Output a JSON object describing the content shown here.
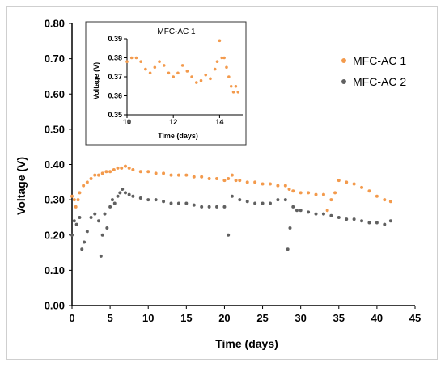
{
  "chart_data": [
    {
      "type": "scatter",
      "title": "",
      "xlabel": "Time (days)",
      "ylabel": "Voltage (V)",
      "xlim": [
        0,
        45
      ],
      "ylim": [
        0,
        0.8
      ],
      "x_ticks": [
        "0",
        "5",
        "10",
        "15",
        "20",
        "25",
        "30",
        "35",
        "40",
        "45"
      ],
      "y_ticks": [
        "0.00",
        "0.10",
        "0.20",
        "0.30",
        "0.40",
        "0.50",
        "0.60",
        "0.70",
        "0.80"
      ],
      "legend_position": "right, upper",
      "grid": false,
      "series": [
        {
          "name": "MFC-AC 1",
          "color": "#F39A4C",
          "marker": "circle",
          "x": [
            0,
            0.3,
            0.5,
            0.8,
            1,
            1.5,
            2,
            2.5,
            3,
            3.5,
            4,
            4.5,
            5,
            5.5,
            6,
            6.5,
            7,
            7.5,
            8,
            9,
            10,
            11,
            12,
            13,
            14,
            15,
            16,
            17,
            18,
            19,
            20,
            20.5,
            21,
            21.5,
            22,
            23,
            24,
            25,
            26,
            27,
            28,
            28.5,
            29,
            30,
            31,
            32,
            33,
            33.5,
            34,
            34.5,
            35,
            36,
            37,
            38,
            39,
            40,
            41,
            41.8
          ],
          "y": [
            0.31,
            0.3,
            0.28,
            0.3,
            0.32,
            0.34,
            0.35,
            0.36,
            0.37,
            0.37,
            0.375,
            0.38,
            0.38,
            0.385,
            0.39,
            0.39,
            0.395,
            0.39,
            0.385,
            0.38,
            0.38,
            0.375,
            0.375,
            0.37,
            0.37,
            0.37,
            0.365,
            0.365,
            0.36,
            0.36,
            0.355,
            0.36,
            0.37,
            0.355,
            0.355,
            0.35,
            0.35,
            0.345,
            0.345,
            0.34,
            0.34,
            0.33,
            0.325,
            0.32,
            0.32,
            0.315,
            0.315,
            0.27,
            0.3,
            0.32,
            0.355,
            0.35,
            0.345,
            0.335,
            0.325,
            0.31,
            0.3,
            0.295
          ]
        },
        {
          "name": "MFC-AC 2",
          "color": "#606060",
          "marker": "circle",
          "x": [
            0,
            0.3,
            0.6,
            1,
            1.3,
            1.6,
            2,
            2.5,
            3,
            3.5,
            3.8,
            4,
            4.3,
            4.6,
            5,
            5.3,
            5.6,
            6,
            6.3,
            6.6,
            7,
            7.5,
            8,
            9,
            10,
            11,
            12,
            13,
            14,
            15,
            16,
            17,
            18,
            19,
            20,
            20.5,
            21,
            22,
            23,
            24,
            25,
            26,
            27,
            28,
            28.3,
            28.6,
            29,
            29.5,
            30,
            31,
            32,
            33,
            34,
            35,
            36,
            37,
            38,
            39,
            40,
            41,
            41.8
          ],
          "y": [
            0.2,
            0.24,
            0.23,
            0.25,
            0.16,
            0.18,
            0.21,
            0.25,
            0.26,
            0.24,
            0.14,
            0.2,
            0.26,
            0.22,
            0.28,
            0.3,
            0.29,
            0.31,
            0.32,
            0.33,
            0.32,
            0.315,
            0.31,
            0.305,
            0.3,
            0.3,
            0.295,
            0.29,
            0.29,
            0.29,
            0.285,
            0.28,
            0.28,
            0.28,
            0.28,
            0.2,
            0.31,
            0.3,
            0.295,
            0.29,
            0.29,
            0.29,
            0.3,
            0.3,
            0.16,
            0.22,
            0.28,
            0.27,
            0.27,
            0.265,
            0.26,
            0.26,
            0.255,
            0.25,
            0.245,
            0.245,
            0.24,
            0.235,
            0.235,
            0.23,
            0.24
          ]
        }
      ]
    },
    {
      "type": "scatter",
      "title": "MFC-AC 1",
      "xlabel": "Time (days)",
      "ylabel": "Voltage (V)",
      "xlim": [
        10,
        15
      ],
      "ylim": [
        0.35,
        0.39
      ],
      "x_ticks": [
        "10",
        "12",
        "14"
      ],
      "y_ticks": [
        "0.35",
        "0.36",
        "0.37",
        "0.38",
        "0.39"
      ],
      "grid": false,
      "series": [
        {
          "color": "#F39A4C",
          "marker": "circle",
          "x": [
            10,
            10.2,
            10.4,
            10.6,
            10.8,
            11,
            11.2,
            11.4,
            11.6,
            11.8,
            12,
            12.2,
            12.4,
            12.6,
            12.8,
            13,
            13.2,
            13.4,
            13.6,
            13.8,
            13.9,
            14,
            14.1,
            14.2,
            14.3,
            14.4,
            14.5,
            14.6,
            14.7,
            14.8
          ],
          "y": [
            0.378,
            0.38,
            0.38,
            0.378,
            0.374,
            0.372,
            0.375,
            0.378,
            0.376,
            0.372,
            0.37,
            0.372,
            0.376,
            0.373,
            0.37,
            0.367,
            0.368,
            0.371,
            0.369,
            0.374,
            0.378,
            0.389,
            0.38,
            0.38,
            0.375,
            0.37,
            0.365,
            0.362,
            0.365,
            0.362
          ]
        }
      ]
    }
  ]
}
